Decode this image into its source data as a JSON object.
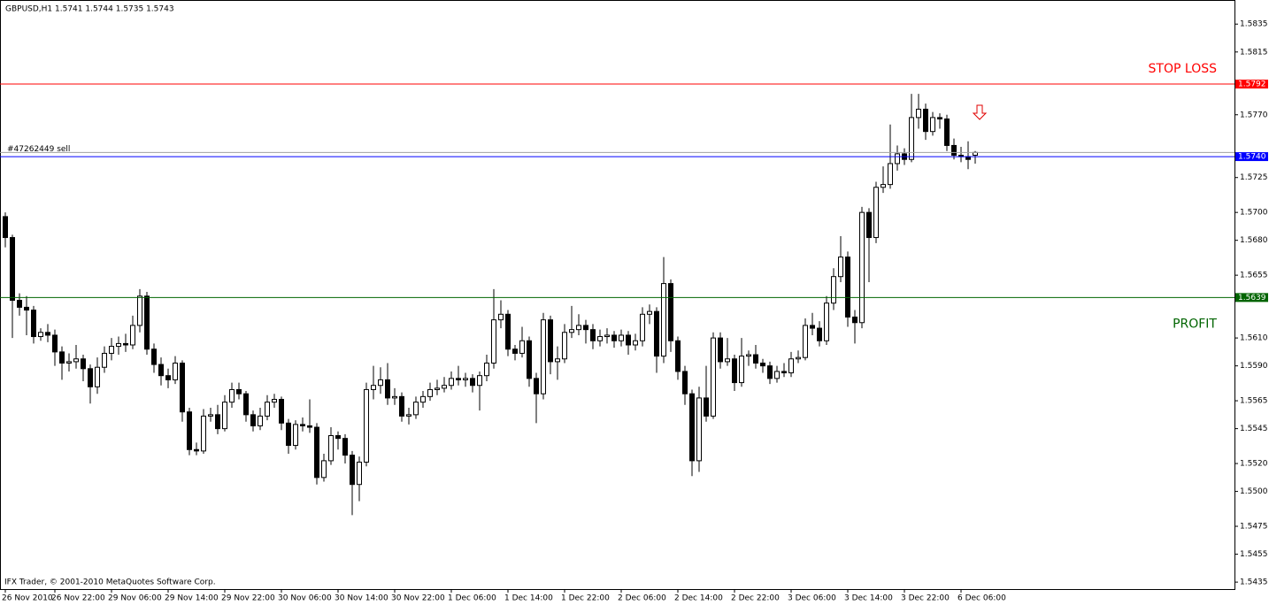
{
  "chart_data": {
    "type": "candlestick",
    "title": "GBPUSD,H1  1.5741 1.5744 1.5735 1.5743",
    "footer": "IFX Trader, © 2001-2010 MetaQuotes Software Corp.",
    "up_color": "#ffffff",
    "down_color": "#000000",
    "wick_color": "#000000",
    "ylim": [
      1.543,
      1.5851
    ],
    "yticks": [
      1.5835,
      1.5815,
      {
        "value": 1.577,
        "label": "1.5770"
      },
      1.5725,
      {
        "value": 1.57,
        "label": "1.5700"
      },
      {
        "value": 1.568,
        "label": "1.5680"
      },
      1.5655,
      {
        "value": 1.561,
        "label": "1.5610"
      },
      {
        "value": 1.559,
        "label": "1.5590"
      },
      1.5565,
      1.5545,
      {
        "value": 1.552,
        "label": "1.5520"
      },
      {
        "value": 1.55,
        "label": "1.5500"
      },
      1.5475,
      1.5455,
      1.5435
    ],
    "levels": [
      {
        "name": "STOP LOSS",
        "value": 1.5792,
        "color": "#ff0000"
      },
      {
        "name": "#47262449 sell",
        "value": 1.5743,
        "color": "#a0a0a0"
      },
      {
        "value": 1.574,
        "value_label": "1.5740",
        "color": "#0000ff"
      },
      {
        "name": "PROFIT",
        "value": 1.5639,
        "color": "#006400"
      }
    ],
    "categories": [
      "26 Nov 2010",
      null,
      null,
      null,
      null,
      null,
      null,
      "26 Nov 22:00",
      null,
      null,
      null,
      null,
      null,
      null,
      null,
      "29 Nov 06:00",
      null,
      null,
      null,
      null,
      null,
      null,
      null,
      "29 Nov 14:00",
      null,
      null,
      null,
      null,
      null,
      null,
      null,
      "29 Nov 22:00",
      null,
      null,
      null,
      null,
      null,
      null,
      null,
      "30 Nov 06:00",
      null,
      null,
      null,
      null,
      null,
      null,
      null,
      "30 Nov 14:00",
      null,
      null,
      null,
      null,
      null,
      null,
      null,
      "30 Nov 22:00",
      null,
      null,
      null,
      null,
      null,
      null,
      null,
      "1 Dec 06:00",
      null,
      null,
      null,
      null,
      null,
      null,
      null,
      "1 Dec 14:00",
      null,
      null,
      null,
      null,
      null,
      null,
      null,
      "1 Dec 22:00",
      null,
      null,
      null,
      null,
      null,
      null,
      null,
      "2 Dec 06:00",
      null,
      null,
      null,
      null,
      null,
      null,
      null,
      "2 Dec 14:00",
      null,
      null,
      null,
      null,
      null,
      null,
      null,
      "2 Dec 22:00",
      null,
      null,
      null,
      null,
      null,
      null,
      null,
      "3 Dec 06:00",
      null,
      null,
      null,
      null,
      null,
      null,
      null,
      "3 Dec 14:00",
      null,
      null,
      null,
      null,
      null,
      null,
      null,
      "3 Dec 22:00",
      null,
      null,
      null,
      null,
      null,
      null,
      null,
      "6 Dec 06:00",
      null,
      null
    ],
    "ohlc": [
      [
        1.5697,
        1.57,
        1.5675,
        1.5682
      ],
      [
        1.5682,
        1.5684,
        1.561,
        1.5637
      ],
      [
        1.5637,
        1.5642,
        1.5626,
        1.5632
      ],
      [
        1.5632,
        1.564,
        1.5612,
        1.563
      ],
      [
        1.563,
        1.5633,
        1.5606,
        1.5611
      ],
      [
        1.5611,
        1.5617,
        1.5608,
        1.5614
      ],
      [
        1.5614,
        1.562,
        1.5607,
        1.5612
      ],
      [
        1.5612,
        1.5616,
        1.559,
        1.56
      ],
      [
        1.56,
        1.5604,
        1.558,
        1.5592
      ],
      [
        1.5592,
        1.5599,
        1.5586,
        1.5593
      ],
      [
        1.5593,
        1.5605,
        1.5588,
        1.5595
      ],
      [
        1.5595,
        1.5598,
        1.5579,
        1.5588
      ],
      [
        1.5588,
        1.5591,
        1.5563,
        1.5575
      ],
      [
        1.5575,
        1.5596,
        1.557,
        1.5589
      ],
      [
        1.5589,
        1.5604,
        1.5585,
        1.5599
      ],
      [
        1.5599,
        1.561,
        1.5594,
        1.5604
      ],
      [
        1.5604,
        1.5611,
        1.5598,
        1.5606
      ],
      [
        1.5606,
        1.5613,
        1.56,
        1.5605
      ],
      [
        1.5605,
        1.5626,
        1.5602,
        1.5619
      ],
      [
        1.5619,
        1.5645,
        1.5614,
        1.564
      ],
      [
        1.564,
        1.5643,
        1.5598,
        1.5602
      ],
      [
        1.5602,
        1.5606,
        1.5585,
        1.5591
      ],
      [
        1.5591,
        1.5596,
        1.5576,
        1.5583
      ],
      [
        1.5583,
        1.5588,
        1.5574,
        1.558
      ],
      [
        1.558,
        1.5597,
        1.5577,
        1.5592
      ],
      [
        1.5592,
        1.5594,
        1.555,
        1.5557
      ],
      [
        1.5557,
        1.556,
        1.5526,
        1.553
      ],
      [
        1.553,
        1.5535,
        1.5526,
        1.5529
      ],
      [
        1.5529,
        1.5559,
        1.5527,
        1.5554
      ],
      [
        1.5554,
        1.556,
        1.555,
        1.5555
      ],
      [
        1.5555,
        1.5562,
        1.5541,
        1.5545
      ],
      [
        1.5545,
        1.5569,
        1.5543,
        1.5564
      ],
      [
        1.5564,
        1.5578,
        1.556,
        1.5573
      ],
      [
        1.5573,
        1.5578,
        1.5566,
        1.557
      ],
      [
        1.557,
        1.5572,
        1.555,
        1.5555
      ],
      [
        1.5555,
        1.5558,
        1.5543,
        1.5547
      ],
      [
        1.5547,
        1.556,
        1.5544,
        1.5554
      ],
      [
        1.5554,
        1.5569,
        1.5551,
        1.5564
      ],
      [
        1.5564,
        1.557,
        1.556,
        1.5566
      ],
      [
        1.5566,
        1.5568,
        1.5544,
        1.5549
      ],
      [
        1.5549,
        1.5552,
        1.5527,
        1.5533
      ],
      [
        1.5533,
        1.5551,
        1.553,
        1.5548
      ],
      [
        1.5548,
        1.5553,
        1.5543,
        1.5547
      ],
      [
        1.5547,
        1.5566,
        1.5542,
        1.5546
      ],
      [
        1.5546,
        1.5549,
        1.5505,
        1.551
      ],
      [
        1.551,
        1.5527,
        1.5507,
        1.5522
      ],
      [
        1.5522,
        1.5546,
        1.5519,
        1.554
      ],
      [
        1.554,
        1.5543,
        1.553,
        1.5538
      ],
      [
        1.5538,
        1.5541,
        1.552,
        1.5526
      ],
      [
        1.5526,
        1.5529,
        1.5483,
        1.5505
      ],
      [
        1.5505,
        1.5525,
        1.5493,
        1.5521
      ],
      [
        1.5521,
        1.5578,
        1.5518,
        1.5573
      ],
      [
        1.5573,
        1.559,
        1.5566,
        1.5576
      ],
      [
        1.5576,
        1.5589,
        1.557,
        1.558
      ],
      [
        1.558,
        1.5592,
        1.5562,
        1.5567
      ],
      [
        1.5567,
        1.5574,
        1.5562,
        1.5568
      ],
      [
        1.5568,
        1.5571,
        1.555,
        1.5554
      ],
      [
        1.5554,
        1.556,
        1.5548,
        1.5555
      ],
      [
        1.5555,
        1.5568,
        1.5552,
        1.5564
      ],
      [
        1.5564,
        1.5572,
        1.556,
        1.5568
      ],
      [
        1.5568,
        1.5578,
        1.5565,
        1.5573
      ],
      [
        1.5573,
        1.558,
        1.5569,
        1.5574
      ],
      [
        1.5574,
        1.5582,
        1.5571,
        1.5576
      ],
      [
        1.5576,
        1.5586,
        1.5573,
        1.5581
      ],
      [
        1.5581,
        1.559,
        1.5576,
        1.558
      ],
      [
        1.558,
        1.5585,
        1.5575,
        1.5581
      ],
      [
        1.5581,
        1.5584,
        1.5571,
        1.5576
      ],
      [
        1.5576,
        1.5586,
        1.5558,
        1.5583
      ],
      [
        1.5583,
        1.5598,
        1.5579,
        1.5592
      ],
      [
        1.5592,
        1.5645,
        1.5588,
        1.5623
      ],
      [
        1.5623,
        1.5637,
        1.5617,
        1.5627
      ],
      [
        1.5627,
        1.563,
        1.5597,
        1.5602
      ],
      [
        1.5602,
        1.5605,
        1.5594,
        1.5599
      ],
      [
        1.5599,
        1.5618,
        1.5596,
        1.5608
      ],
      [
        1.5608,
        1.5611,
        1.5575,
        1.5581
      ],
      [
        1.5581,
        1.5585,
        1.5549,
        1.557
      ],
      [
        1.557,
        1.5628,
        1.5566,
        1.5623
      ],
      [
        1.5623,
        1.5626,
        1.5584,
        1.5593
      ],
      [
        1.5593,
        1.5604,
        1.558,
        1.5595
      ],
      [
        1.5595,
        1.562,
        1.5592,
        1.5614
      ],
      [
        1.5614,
        1.5633,
        1.561,
        1.5616
      ],
      [
        1.5616,
        1.5627,
        1.5612,
        1.5619
      ],
      [
        1.5619,
        1.5623,
        1.5606,
        1.5616
      ],
      [
        1.5616,
        1.562,
        1.5602,
        1.5608
      ],
      [
        1.5608,
        1.5616,
        1.5604,
        1.5611
      ],
      [
        1.5611,
        1.5617,
        1.5606,
        1.5612
      ],
      [
        1.5612,
        1.5615,
        1.5603,
        1.5608
      ],
      [
        1.5608,
        1.5616,
        1.5604,
        1.5612
      ],
      [
        1.5612,
        1.5615,
        1.5598,
        1.5605
      ],
      [
        1.5605,
        1.5613,
        1.5601,
        1.5608
      ],
      [
        1.5608,
        1.5632,
        1.5604,
        1.5627
      ],
      [
        1.5627,
        1.5634,
        1.562,
        1.5629
      ],
      [
        1.5629,
        1.5632,
        1.5585,
        1.5597
      ],
      [
        1.5597,
        1.5668,
        1.5592,
        1.5649
      ],
      [
        1.5649,
        1.5652,
        1.56,
        1.5608
      ],
      [
        1.5608,
        1.5611,
        1.558,
        1.5586
      ],
      [
        1.5586,
        1.559,
        1.5562,
        1.557
      ],
      [
        1.557,
        1.5573,
        1.5511,
        1.5522
      ],
      [
        1.5522,
        1.5575,
        1.5514,
        1.5567
      ],
      [
        1.5567,
        1.559,
        1.555,
        1.5554
      ],
      [
        1.5554,
        1.5614,
        1.5552,
        1.561
      ],
      [
        1.561,
        1.5614,
        1.5588,
        1.5593
      ],
      [
        1.5593,
        1.561,
        1.559,
        1.5595
      ],
      [
        1.5595,
        1.5598,
        1.5572,
        1.5578
      ],
      [
        1.5578,
        1.561,
        1.5575,
        1.5597
      ],
      [
        1.5597,
        1.5601,
        1.559,
        1.5598
      ],
      [
        1.5598,
        1.5605,
        1.5588,
        1.5592
      ],
      [
        1.5592,
        1.5595,
        1.5585,
        1.559
      ],
      [
        1.559,
        1.5593,
        1.5577,
        1.5581
      ],
      [
        1.5581,
        1.559,
        1.5578,
        1.5586
      ],
      [
        1.5586,
        1.5592,
        1.5582,
        1.5585
      ],
      [
        1.5585,
        1.56,
        1.5582,
        1.5595
      ],
      [
        1.5595,
        1.5601,
        1.5592,
        1.5596
      ],
      [
        1.5596,
        1.5624,
        1.5594,
        1.5619
      ],
      [
        1.5619,
        1.5628,
        1.5612,
        1.5617
      ],
      [
        1.5617,
        1.5622,
        1.5604,
        1.5608
      ],
      [
        1.5608,
        1.564,
        1.5605,
        1.5635
      ],
      [
        1.5635,
        1.566,
        1.563,
        1.5654
      ],
      [
        1.5654,
        1.5683,
        1.565,
        1.5668
      ],
      [
        1.5668,
        1.5672,
        1.5618,
        1.5625
      ],
      [
        1.5625,
        1.563,
        1.5606,
        1.5621
      ],
      [
        1.5621,
        1.5704,
        1.5617,
        1.57
      ],
      [
        1.57,
        1.5703,
        1.565,
        1.5682
      ],
      [
        1.5682,
        1.5722,
        1.5678,
        1.5718
      ],
      [
        1.5718,
        1.5733,
        1.5714,
        1.572
      ],
      [
        1.572,
        1.5763,
        1.5717,
        1.5735
      ],
      [
        1.5735,
        1.5748,
        1.573,
        1.5742
      ],
      [
        1.5742,
        1.5746,
        1.5734,
        1.5738
      ],
      [
        1.5738,
        1.5785,
        1.5736,
        1.5768
      ],
      [
        1.5768,
        1.5785,
        1.576,
        1.5774
      ],
      [
        1.5774,
        1.5778,
        1.5752,
        1.5758
      ],
      [
        1.5758,
        1.5772,
        1.5755,
        1.5768
      ],
      [
        1.5768,
        1.5771,
        1.576,
        1.5767
      ],
      [
        1.5767,
        1.577,
        1.5744,
        1.5748
      ],
      [
        1.5748,
        1.5753,
        1.5738,
        1.5741
      ],
      [
        1.5741,
        1.5747,
        1.5736,
        1.574
      ],
      [
        1.574,
        1.5751,
        1.5731,
        1.5738
      ],
      [
        1.5741,
        1.5744,
        1.5735,
        1.5743
      ]
    ]
  }
}
